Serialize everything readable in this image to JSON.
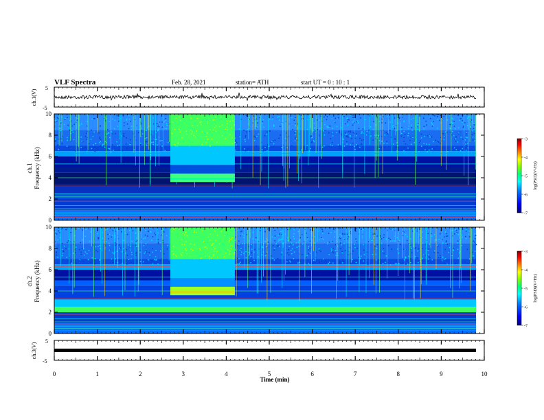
{
  "header": {
    "title": "VLF Spectra",
    "date": "Feb. 28, 2021",
    "station": "station= ATH",
    "start_ut": "start  UT =   0 : 10 : 1"
  },
  "colors": {
    "waveform": "#000000",
    "colormap": [
      "#000080",
      "#0000ff",
      "#0080ff",
      "#00ffff",
      "#00ff80",
      "#80ff00",
      "#ffff00",
      "#ff8000",
      "#ff0000",
      "#800000"
    ]
  },
  "chart_data": [
    {
      "type": "line",
      "ylabel": "ch.1(V)",
      "ylim": [
        -5,
        5
      ],
      "yticks": [
        "5",
        "-5"
      ],
      "xlim": [
        0,
        10
      ],
      "description_values": {
        "baseline": 0.0
      }
    },
    {
      "type": "heatmap",
      "ylabel_line1": "ch.1",
      "ylabel_line2": "Frequency  (kHz)",
      "ylim": [
        0,
        10
      ],
      "yticks": [
        "0",
        "2",
        "4",
        "6",
        "8",
        "10"
      ],
      "xlim": [
        0,
        10
      ],
      "colorbar": {
        "label": "log(PSD)(V²/Hz)",
        "range": [
          -7,
          -3
        ],
        "ticks": [
          "-3",
          "-4",
          "-5",
          "-6",
          "-7"
        ]
      },
      "events": [
        {
          "t_start": 2.7,
          "t_end": 4.2,
          "f_low": 3.6,
          "f_high": 4.4
        }
      ]
    },
    {
      "type": "heatmap",
      "ylabel_line1": "ch.2",
      "ylabel_line2": "Frequency  (kHz)",
      "ylim": [
        0,
        10
      ],
      "yticks": [
        "0",
        "2",
        "4",
        "6",
        "8",
        "10"
      ],
      "xlim": [
        0,
        10
      ],
      "colorbar": {
        "label": "log(PSD)(V²/Hz)",
        "range": [
          -7,
          -3
        ],
        "ticks": [
          "-3",
          "-4",
          "-5",
          "-6",
          "-7"
        ]
      },
      "events": [
        {
          "t_start": 2.7,
          "t_end": 4.2,
          "f_low": 3.6,
          "f_high": 4.4
        }
      ]
    },
    {
      "type": "line",
      "ylabel": "ch.3(V)",
      "ylim": [
        -5,
        5
      ],
      "yticks": [
        "5",
        "-5"
      ],
      "xlim": [
        0,
        10
      ],
      "xlabel": "Time  (min)",
      "xticks": [
        "0",
        "1",
        "2",
        "3",
        "4",
        "5",
        "6",
        "7",
        "8",
        "9",
        "10"
      ],
      "description_values": {
        "baseline": 0.0
      }
    }
  ]
}
